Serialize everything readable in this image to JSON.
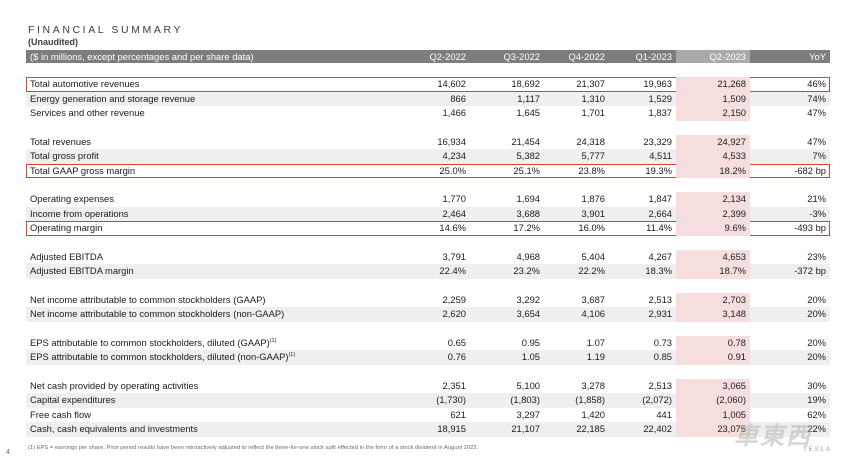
{
  "title": "FINANCIAL SUMMARY",
  "subtitle": "(Unaudited)",
  "header": {
    "label": "($ in millions, except percentages and per share data)",
    "cols": [
      "Q2-2022",
      "Q3-2022",
      "Q4-2022",
      "Q1-2023",
      "Q2-2023",
      "YoY"
    ]
  },
  "groups": [
    {
      "rows": [
        {
          "label": "Total automotive revenues",
          "vals": [
            "14,602",
            "18,692",
            "21,307",
            "19,963",
            "21,268",
            "46%"
          ],
          "boxed": true
        },
        {
          "label": "Energy generation and storage revenue",
          "vals": [
            "866",
            "1,117",
            "1,310",
            "1,529",
            "1,509",
            "74%"
          ]
        },
        {
          "label": "Services and other revenue",
          "vals": [
            "1,466",
            "1,645",
            "1,701",
            "1,837",
            "2,150",
            "47%"
          ]
        }
      ]
    },
    {
      "rows": [
        {
          "label": "Total revenues",
          "vals": [
            "16,934",
            "21,454",
            "24,318",
            "23,329",
            "24,927",
            "47%"
          ]
        },
        {
          "label": "Total gross profit",
          "vals": [
            "4,234",
            "5,382",
            "5,777",
            "4,511",
            "4,533",
            "7%"
          ]
        },
        {
          "label": "Total GAAP gross margin",
          "vals": [
            "25.0%",
            "25.1%",
            "23.8%",
            "19.3%",
            "18.2%",
            "-682 bp"
          ],
          "boxed": true
        }
      ]
    },
    {
      "rows": [
        {
          "label": "Operating expenses",
          "vals": [
            "1,770",
            "1,694",
            "1,876",
            "1,847",
            "2,134",
            "21%"
          ]
        },
        {
          "label": "Income from operations",
          "vals": [
            "2,464",
            "3,688",
            "3,901",
            "2,664",
            "2,399",
            "-3%"
          ]
        },
        {
          "label": "Operating margin",
          "vals": [
            "14.6%",
            "17.2%",
            "16.0%",
            "11.4%",
            "9.6%",
            "-493 bp"
          ],
          "boxed": true
        }
      ]
    },
    {
      "rows": [
        {
          "label": "Adjusted EBITDA",
          "vals": [
            "3,791",
            "4,968",
            "5,404",
            "4,267",
            "4,653",
            "23%"
          ]
        },
        {
          "label": "Adjusted EBITDA margin",
          "vals": [
            "22.4%",
            "23.2%",
            "22.2%",
            "18.3%",
            "18.7%",
            "-372 bp"
          ]
        }
      ]
    },
    {
      "rows": [
        {
          "label": "Net income attributable to common stockholders (GAAP)",
          "vals": [
            "2,259",
            "3,292",
            "3,687",
            "2,513",
            "2,703",
            "20%"
          ]
        },
        {
          "label": "Net income attributable to common stockholders (non-GAAP)",
          "vals": [
            "2,620",
            "3,654",
            "4,106",
            "2,931",
            "3,148",
            "20%"
          ]
        }
      ]
    },
    {
      "rows": [
        {
          "label": "EPS attributable to common stockholders, diluted (GAAP)",
          "sup": "(1)",
          "vals": [
            "0.65",
            "0.95",
            "1.07",
            "0.73",
            "0.78",
            "20%"
          ]
        },
        {
          "label": "EPS attributable to common stockholders, diluted (non-GAAP)",
          "sup": "(1)",
          "vals": [
            "0.76",
            "1.05",
            "1.19",
            "0.85",
            "0.91",
            "20%"
          ]
        }
      ]
    },
    {
      "rows": [
        {
          "label": "Net cash provided by operating activities",
          "vals": [
            "2,351",
            "5,100",
            "3,278",
            "2,513",
            "3,065",
            "30%"
          ]
        },
        {
          "label": "Capital expenditures",
          "vals": [
            "(1,730)",
            "(1,803)",
            "(1,858)",
            "(2,072)",
            "(2,060)",
            "19%"
          ]
        },
        {
          "label": "Free cash flow",
          "vals": [
            "621",
            "3,297",
            "1,420",
            "441",
            "1,005",
            "62%"
          ]
        },
        {
          "label": "Cash, cash equivalents and investments",
          "vals": [
            "18,915",
            "21,107",
            "22,185",
            "22,402",
            "23,075",
            "22%"
          ]
        }
      ]
    }
  ],
  "footnote": "(1) EPS = earnings per share. Prior period results have been retroactively adjusted to reflect the three-for-one stock split effected in the form of a stock dividend in August 2022.",
  "page_number": "4",
  "watermark": "車東西",
  "watermark_sub": "TESLA"
}
